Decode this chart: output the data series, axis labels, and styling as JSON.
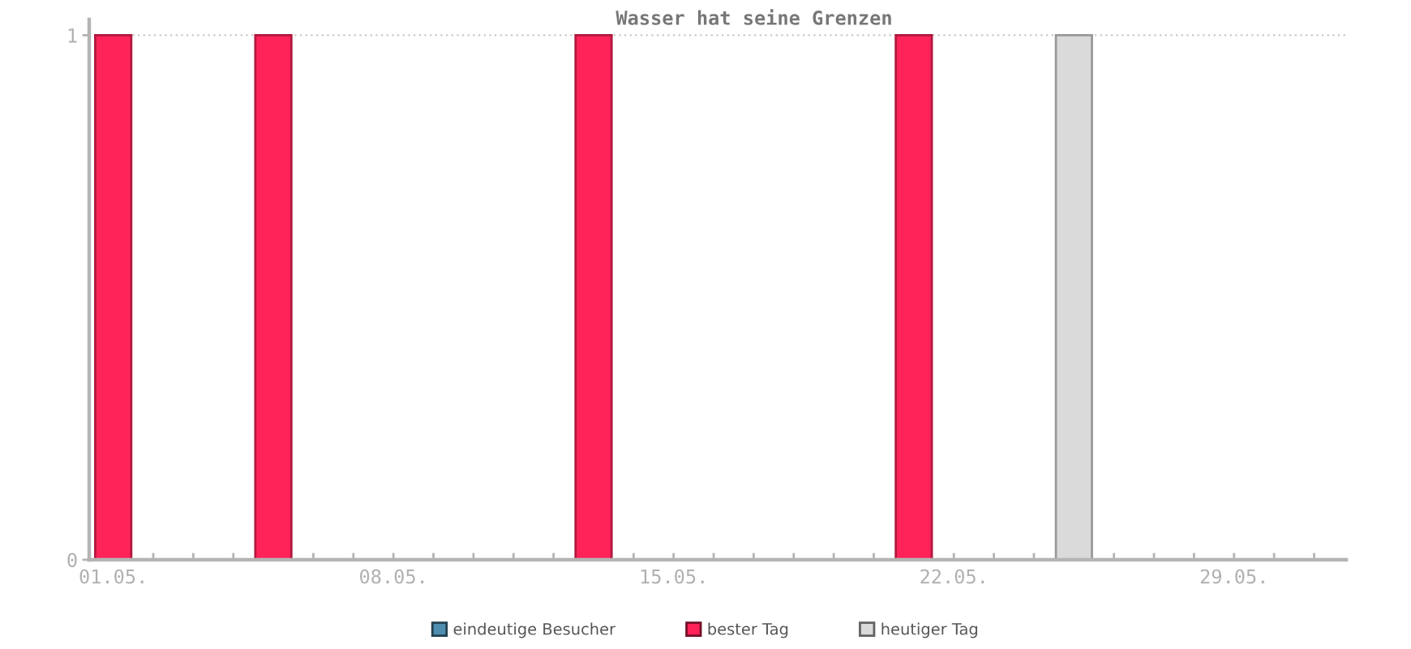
{
  "chart_data": {
    "type": "bar",
    "title": "Wasser hat seine Grenzen",
    "categories": [
      "01.05.",
      null,
      null,
      null,
      null,
      null,
      null,
      "08.05.",
      null,
      null,
      null,
      null,
      null,
      null,
      "15.05.",
      null,
      null,
      null,
      null,
      null,
      null,
      "22.05.",
      null,
      null,
      null,
      null,
      null,
      null,
      "29.05.",
      null,
      null
    ],
    "series": [
      {
        "name": "eindeutige Besucher",
        "color": "#4e8db0",
        "values": [
          null,
          0,
          0,
          0,
          null,
          0,
          0,
          0,
          0,
          0,
          0,
          0,
          null,
          0,
          0,
          0,
          0,
          0,
          0,
          0,
          null,
          0,
          0,
          0,
          null,
          null,
          null,
          null,
          null,
          null,
          null
        ]
      },
      {
        "name": "bester Tag",
        "color": "#ff2359",
        "values": [
          1,
          null,
          null,
          null,
          1,
          null,
          null,
          null,
          null,
          null,
          null,
          null,
          1,
          null,
          null,
          null,
          null,
          null,
          null,
          null,
          1,
          null,
          null,
          null,
          null,
          null,
          null,
          null,
          null,
          null,
          null
        ]
      },
      {
        "name": "heutiger Tag",
        "color": "#dadada",
        "values": [
          null,
          null,
          null,
          null,
          null,
          null,
          null,
          null,
          null,
          null,
          null,
          null,
          null,
          null,
          null,
          null,
          null,
          null,
          null,
          null,
          null,
          null,
          null,
          null,
          1,
          null,
          null,
          null,
          null,
          null,
          null
        ]
      }
    ],
    "ylim": [
      0,
      1.03
    ],
    "yticks": [
      0,
      1
    ],
    "grid": "y",
    "legend": "bottom"
  }
}
